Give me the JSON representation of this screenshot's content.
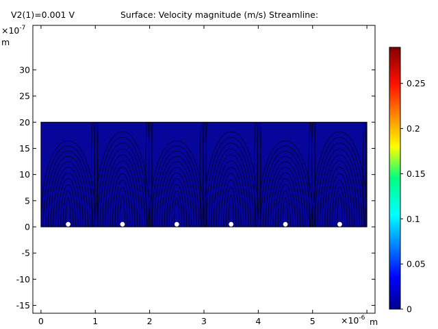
{
  "header": {
    "parameter_label": "V2(1)=0.001 V",
    "title": "Surface: Velocity magnitude (m/s)  Streamline:"
  },
  "chart_data": {
    "type": "heatmap",
    "title": "Surface: Velocity magnitude (m/s)  Streamline:",
    "x_axis": {
      "unit": "m",
      "scale_label_base": "×10",
      "scale_label_exp": "-6",
      "range": [
        -0.15,
        6.15
      ],
      "ticks": [
        0,
        1,
        2,
        3,
        4,
        5,
        6
      ],
      "tick_labels": [
        "0",
        "1",
        "2",
        "3",
        "4",
        "5",
        "6"
      ]
    },
    "y_axis": {
      "unit": "m",
      "scale_label_base": "×10",
      "scale_label_exp": "-7",
      "range": [
        -16.5,
        38.5
      ],
      "ticks": [
        -15,
        -10,
        -5,
        0,
        5,
        10,
        15,
        20,
        25,
        30
      ],
      "tick_labels": [
        "-15",
        "-10",
        "-5",
        "0",
        "5",
        "10",
        "15",
        "20",
        "25",
        "30"
      ]
    },
    "domain_rect": {
      "x": [
        0,
        6
      ],
      "y": [
        0,
        20
      ]
    },
    "surface_color": "#06069a",
    "streamline_color": "#000000",
    "electrodes": {
      "x": [
        0.5,
        1.5,
        2.5,
        3.5,
        4.5,
        5.5
      ],
      "y": 0.5,
      "color": "#ffffff"
    },
    "streamline_cells": {
      "centers_x": [
        0.5,
        1.5,
        2.5,
        3.5,
        4.5,
        5.5
      ],
      "half_width": 0.5
    },
    "colorbar": {
      "range": [
        0,
        0.29
      ],
      "ticks": [
        0,
        0.05,
        0.1,
        0.15,
        0.2,
        0.25
      ],
      "tick_labels": [
        "0",
        "0.05",
        "0.1",
        "0.15",
        "0.2",
        "0.25"
      ],
      "colormap": "rainbow"
    }
  }
}
